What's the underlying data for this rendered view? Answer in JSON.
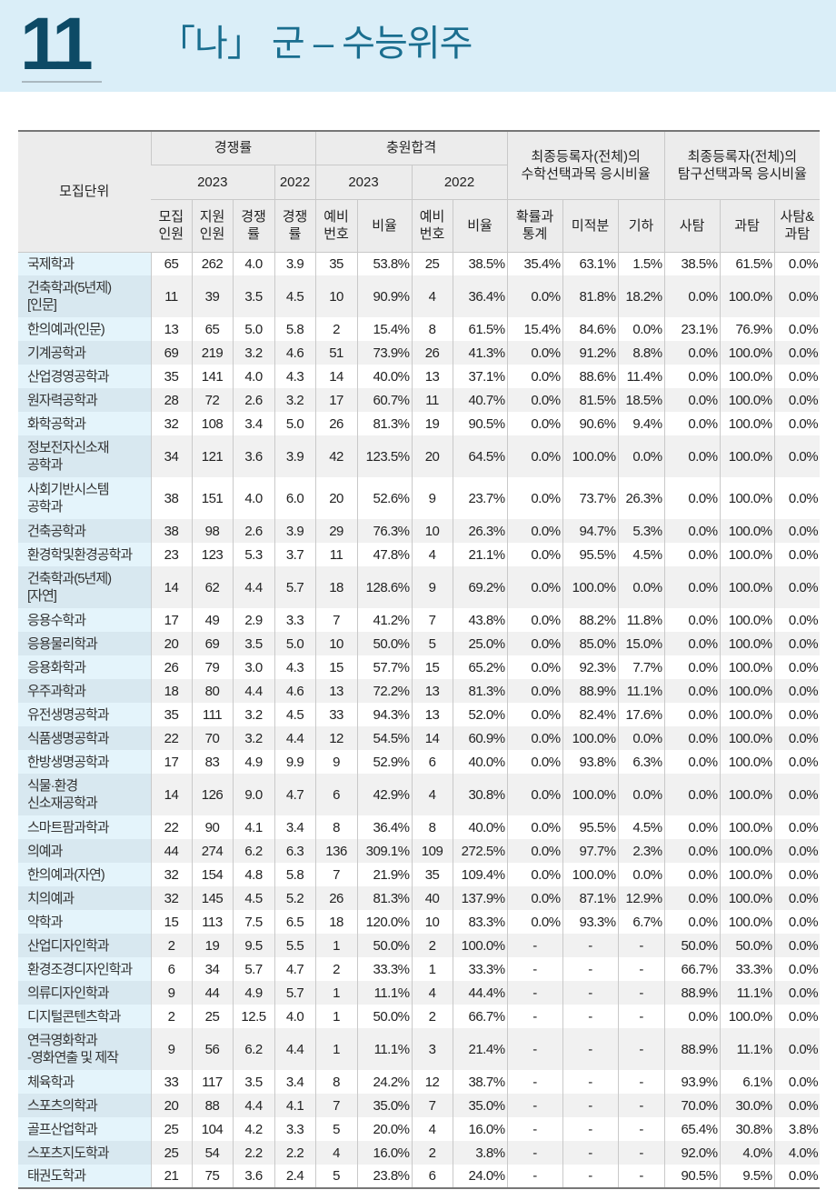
{
  "header": {
    "section_number": "11",
    "title": "「나」 군 – 수능위주"
  },
  "colors": {
    "band": "#daeef8",
    "number": "#0d4a66",
    "title": "#1a6e8f"
  },
  "table": {
    "group_headers": {
      "unit": "모집단위",
      "competition": "경쟁률",
      "waitlist": "충원합격",
      "math": "최종등록자(전체)의\n수학선택과목 응시비율",
      "inquiry": "최종등록자(전체)의\n탐구선택과목 응시비율"
    },
    "years": {
      "comp_2023": "2023",
      "comp_2022": "2022",
      "wait_2023": "2023",
      "wait_2022": "2022"
    },
    "columns": [
      "모집\n인원",
      "지원\n인원",
      "경쟁\n률",
      "경쟁\n률",
      "예비\n번호",
      "비율",
      "예비\n번호",
      "비율",
      "확률과\n통계",
      "미적분",
      "기하",
      "사탐",
      "과탐",
      "사탐&\n과탐"
    ],
    "rows": [
      [
        "국제학과",
        "65",
        "262",
        "4.0",
        "3.9",
        "35",
        "53.8%",
        "25",
        "38.5%",
        "35.4%",
        "63.1%",
        "1.5%",
        "38.5%",
        "61.5%",
        "0.0%"
      ],
      [
        "건축학과(5년제)\n[인문]",
        "11",
        "39",
        "3.5",
        "4.5",
        "10",
        "90.9%",
        "4",
        "36.4%",
        "0.0%",
        "81.8%",
        "18.2%",
        "0.0%",
        "100.0%",
        "0.0%"
      ],
      [
        "한의예과(인문)",
        "13",
        "65",
        "5.0",
        "5.8",
        "2",
        "15.4%",
        "8",
        "61.5%",
        "15.4%",
        "84.6%",
        "0.0%",
        "23.1%",
        "76.9%",
        "0.0%"
      ],
      [
        "기계공학과",
        "69",
        "219",
        "3.2",
        "4.6",
        "51",
        "73.9%",
        "26",
        "41.3%",
        "0.0%",
        "91.2%",
        "8.8%",
        "0.0%",
        "100.0%",
        "0.0%"
      ],
      [
        "산업경영공학과",
        "35",
        "141",
        "4.0",
        "4.3",
        "14",
        "40.0%",
        "13",
        "37.1%",
        "0.0%",
        "88.6%",
        "11.4%",
        "0.0%",
        "100.0%",
        "0.0%"
      ],
      [
        "원자력공학과",
        "28",
        "72",
        "2.6",
        "3.2",
        "17",
        "60.7%",
        "11",
        "40.7%",
        "0.0%",
        "81.5%",
        "18.5%",
        "0.0%",
        "100.0%",
        "0.0%"
      ],
      [
        "화학공학과",
        "32",
        "108",
        "3.4",
        "5.0",
        "26",
        "81.3%",
        "19",
        "90.5%",
        "0.0%",
        "90.6%",
        "9.4%",
        "0.0%",
        "100.0%",
        "0.0%"
      ],
      [
        "정보전자신소재\n공학과",
        "34",
        "121",
        "3.6",
        "3.9",
        "42",
        "123.5%",
        "20",
        "64.5%",
        "0.0%",
        "100.0%",
        "0.0%",
        "0.0%",
        "100.0%",
        "0.0%"
      ],
      [
        "사회기반시스템\n공학과",
        "38",
        "151",
        "4.0",
        "6.0",
        "20",
        "52.6%",
        "9",
        "23.7%",
        "0.0%",
        "73.7%",
        "26.3%",
        "0.0%",
        "100.0%",
        "0.0%"
      ],
      [
        "건축공학과",
        "38",
        "98",
        "2.6",
        "3.9",
        "29",
        "76.3%",
        "10",
        "26.3%",
        "0.0%",
        "94.7%",
        "5.3%",
        "0.0%",
        "100.0%",
        "0.0%"
      ],
      [
        "환경학및환경공학과",
        "23",
        "123",
        "5.3",
        "3.7",
        "11",
        "47.8%",
        "4",
        "21.1%",
        "0.0%",
        "95.5%",
        "4.5%",
        "0.0%",
        "100.0%",
        "0.0%"
      ],
      [
        "건축학과(5년제)\n[자연]",
        "14",
        "62",
        "4.4",
        "5.7",
        "18",
        "128.6%",
        "9",
        "69.2%",
        "0.0%",
        "100.0%",
        "0.0%",
        "0.0%",
        "100.0%",
        "0.0%"
      ],
      [
        "응용수학과",
        "17",
        "49",
        "2.9",
        "3.3",
        "7",
        "41.2%",
        "7",
        "43.8%",
        "0.0%",
        "88.2%",
        "11.8%",
        "0.0%",
        "100.0%",
        "0.0%"
      ],
      [
        "응용물리학과",
        "20",
        "69",
        "3.5",
        "5.0",
        "10",
        "50.0%",
        "5",
        "25.0%",
        "0.0%",
        "85.0%",
        "15.0%",
        "0.0%",
        "100.0%",
        "0.0%"
      ],
      [
        "응용화학과",
        "26",
        "79",
        "3.0",
        "4.3",
        "15",
        "57.7%",
        "15",
        "65.2%",
        "0.0%",
        "92.3%",
        "7.7%",
        "0.0%",
        "100.0%",
        "0.0%"
      ],
      [
        "우주과학과",
        "18",
        "80",
        "4.4",
        "4.6",
        "13",
        "72.2%",
        "13",
        "81.3%",
        "0.0%",
        "88.9%",
        "11.1%",
        "0.0%",
        "100.0%",
        "0.0%"
      ],
      [
        "유전생명공학과",
        "35",
        "111",
        "3.2",
        "4.5",
        "33",
        "94.3%",
        "13",
        "52.0%",
        "0.0%",
        "82.4%",
        "17.6%",
        "0.0%",
        "100.0%",
        "0.0%"
      ],
      [
        "식품생명공학과",
        "22",
        "70",
        "3.2",
        "4.4",
        "12",
        "54.5%",
        "14",
        "60.9%",
        "0.0%",
        "100.0%",
        "0.0%",
        "0.0%",
        "100.0%",
        "0.0%"
      ],
      [
        "한방생명공학과",
        "17",
        "83",
        "4.9",
        "9.9",
        "9",
        "52.9%",
        "6",
        "40.0%",
        "0.0%",
        "93.8%",
        "6.3%",
        "0.0%",
        "100.0%",
        "0.0%"
      ],
      [
        "식물·환경\n신소재공학과",
        "14",
        "126",
        "9.0",
        "4.7",
        "6",
        "42.9%",
        "4",
        "30.8%",
        "0.0%",
        "100.0%",
        "0.0%",
        "0.0%",
        "100.0%",
        "0.0%"
      ],
      [
        "스마트팜과학과",
        "22",
        "90",
        "4.1",
        "3.4",
        "8",
        "36.4%",
        "8",
        "40.0%",
        "0.0%",
        "95.5%",
        "4.5%",
        "0.0%",
        "100.0%",
        "0.0%"
      ],
      [
        "의예과",
        "44",
        "274",
        "6.2",
        "6.3",
        "136",
        "309.1%",
        "109",
        "272.5%",
        "0.0%",
        "97.7%",
        "2.3%",
        "0.0%",
        "100.0%",
        "0.0%"
      ],
      [
        "한의예과(자연)",
        "32",
        "154",
        "4.8",
        "5.8",
        "7",
        "21.9%",
        "35",
        "109.4%",
        "0.0%",
        "100.0%",
        "0.0%",
        "0.0%",
        "100.0%",
        "0.0%"
      ],
      [
        "치의예과",
        "32",
        "145",
        "4.5",
        "5.2",
        "26",
        "81.3%",
        "40",
        "137.9%",
        "0.0%",
        "87.1%",
        "12.9%",
        "0.0%",
        "100.0%",
        "0.0%"
      ],
      [
        "약학과",
        "15",
        "113",
        "7.5",
        "6.5",
        "18",
        "120.0%",
        "10",
        "83.3%",
        "0.0%",
        "93.3%",
        "6.7%",
        "0.0%",
        "100.0%",
        "0.0%"
      ],
      [
        "산업디자인학과",
        "2",
        "19",
        "9.5",
        "5.5",
        "1",
        "50.0%",
        "2",
        "100.0%",
        "-",
        "-",
        "-",
        "50.0%",
        "50.0%",
        "0.0%"
      ],
      [
        "환경조경디자인학과",
        "6",
        "34",
        "5.7",
        "4.7",
        "2",
        "33.3%",
        "1",
        "33.3%",
        "-",
        "-",
        "-",
        "66.7%",
        "33.3%",
        "0.0%"
      ],
      [
        "의류디자인학과",
        "9",
        "44",
        "4.9",
        "5.7",
        "1",
        "11.1%",
        "4",
        "44.4%",
        "-",
        "-",
        "-",
        "88.9%",
        "11.1%",
        "0.0%"
      ],
      [
        "디지털콘텐츠학과",
        "2",
        "25",
        "12.5",
        "4.0",
        "1",
        "50.0%",
        "2",
        "66.7%",
        "-",
        "-",
        "-",
        "0.0%",
        "100.0%",
        "0.0%"
      ],
      [
        "연극영화학과\n -영화연출 및 제작",
        "9",
        "56",
        "6.2",
        "4.4",
        "1",
        "11.1%",
        "3",
        "21.4%",
        "-",
        "-",
        "-",
        "88.9%",
        "11.1%",
        "0.0%"
      ],
      [
        "체육학과",
        "33",
        "117",
        "3.5",
        "3.4",
        "8",
        "24.2%",
        "12",
        "38.7%",
        "-",
        "-",
        "-",
        "93.9%",
        "6.1%",
        "0.0%"
      ],
      [
        "스포츠의학과",
        "20",
        "88",
        "4.4",
        "4.1",
        "7",
        "35.0%",
        "7",
        "35.0%",
        "-",
        "-",
        "-",
        "70.0%",
        "30.0%",
        "0.0%"
      ],
      [
        "골프산업학과",
        "25",
        "104",
        "4.2",
        "3.3",
        "5",
        "20.0%",
        "4",
        "16.0%",
        "-",
        "-",
        "-",
        "65.4%",
        "30.8%",
        "3.8%"
      ],
      [
        "스포츠지도학과",
        "25",
        "54",
        "2.2",
        "2.2",
        "4",
        "16.0%",
        "2",
        "3.8%",
        "-",
        "-",
        "-",
        "92.0%",
        "4.0%",
        "4.0%"
      ],
      [
        "태권도학과",
        "21",
        "75",
        "3.6",
        "2.4",
        "5",
        "23.8%",
        "6",
        "24.0%",
        "-",
        "-",
        "-",
        "90.5%",
        "9.5%",
        "0.0%"
      ]
    ]
  }
}
